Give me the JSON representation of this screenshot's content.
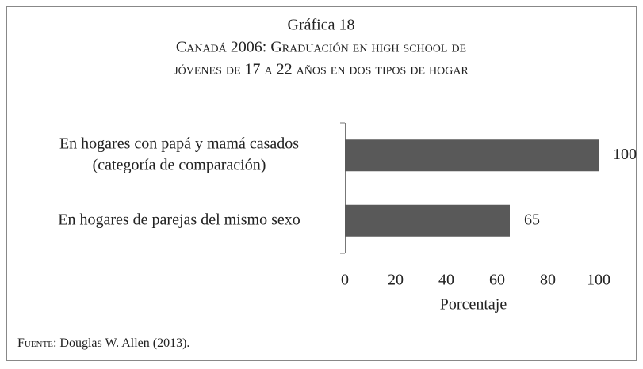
{
  "chart_data": {
    "type": "bar",
    "orientation": "horizontal",
    "title": "Gráfica 18",
    "subtitle": [
      "Canadá 2006: Graduación en high school de",
      "jóvenes de 17 a 22 años en dos tipos de hogar"
    ],
    "categories": [
      [
        "En hogares con papá y mamá casados",
        "(categoría de comparación)"
      ],
      [
        "En hogares de parejas del mismo sexo"
      ]
    ],
    "values": [
      100,
      65
    ],
    "color": "#595959",
    "xlim": [
      0,
      100
    ],
    "xticks": [
      0,
      20,
      40,
      60,
      80,
      100
    ],
    "xlabel": "Porcentaje",
    "grid": false,
    "source": {
      "label": "Fuente",
      "text": ": Douglas W. Allen (2013)."
    }
  }
}
